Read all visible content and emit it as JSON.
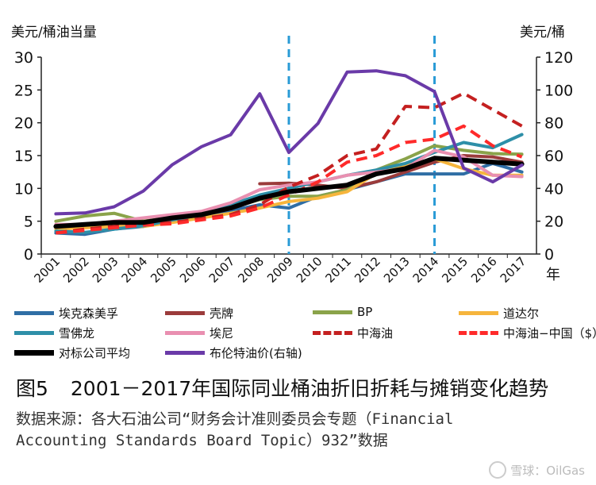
{
  "left_unit": "美元/桶油当量",
  "right_unit": "美元/桶",
  "x_unit": "年",
  "figure_label": "图5",
  "figure_title": "2001－2017年国际同业桶油折旧折耗与摊销变化趋势",
  "source_line1": "数据来源：各大石油公司“财务会计准则委员会专题（Financial",
  "source_line2": "Accounting Standards Board Topic）932”数据",
  "watermark": "雪球：OilGas",
  "chart_data": {
    "type": "line",
    "x": [
      "2001",
      "2002",
      "2003",
      "2004",
      "2005",
      "2006",
      "2007",
      "2008",
      "2009",
      "2010",
      "2011",
      "2012",
      "2013",
      "2014",
      "2015",
      "2016",
      "2017"
    ],
    "ylim": [
      0,
      30
    ],
    "y_ticks": [
      0,
      5,
      10,
      15,
      20,
      25,
      30
    ],
    "y2lim": [
      0,
      120
    ],
    "y2_ticks": [
      0,
      20,
      40,
      60,
      80,
      100,
      120
    ],
    "vlines": [
      "2009",
      "2014"
    ],
    "vline_color": "#2a9bd6",
    "series": [
      {
        "name": "埃克森美孚",
        "color": "#2f6ea5",
        "style": "solid",
        "axis": "left",
        "values": [
          3.2,
          3.0,
          3.8,
          4.2,
          5.0,
          5.8,
          6.6,
          7.5,
          7.0,
          8.8,
          9.8,
          11.0,
          12.2,
          12.2,
          12.2,
          13.8,
          12.5
        ]
      },
      {
        "name": "壳牌",
        "color": "#9b3b3b",
        "style": "solid",
        "axis": "left",
        "values": [
          null,
          null,
          null,
          null,
          null,
          null,
          null,
          10.7,
          10.8,
          10.5,
          10.0,
          11.0,
          12.5,
          14.0,
          15.0,
          14.8,
          14.0
        ]
      },
      {
        "name": "BP",
        "color": "#8aa34a",
        "style": "solid",
        "axis": "left",
        "values": [
          5.0,
          5.8,
          6.2,
          5.0,
          5.6,
          6.2,
          7.0,
          8.3,
          8.8,
          8.8,
          9.8,
          12.8,
          14.5,
          16.5,
          15.8,
          15.3,
          15.2
        ]
      },
      {
        "name": "道达尔",
        "color": "#f6b53c",
        "style": "solid",
        "axis": "left",
        "values": [
          3.8,
          4.0,
          4.2,
          4.2,
          4.8,
          5.5,
          6.2,
          7.0,
          8.0,
          8.5,
          9.5,
          12.3,
          13.5,
          14.5,
          13.0,
          12.0,
          12.0
        ]
      },
      {
        "name": "雪佛龙",
        "color": "#2e8fa8",
        "style": "solid",
        "axis": "left",
        "values": [
          3.5,
          3.3,
          3.8,
          4.3,
          5.2,
          6.0,
          7.5,
          9.0,
          10.0,
          11.0,
          12.0,
          12.8,
          13.8,
          15.5,
          17.0,
          16.2,
          18.2
        ]
      },
      {
        "name": "埃尼",
        "color": "#e98fb0",
        "style": "solid",
        "axis": "left",
        "values": [
          4.5,
          4.5,
          5.0,
          5.5,
          6.0,
          6.5,
          7.8,
          9.8,
          10.5,
          11.0,
          12.0,
          12.5,
          13.0,
          15.8,
          14.8,
          12.0,
          11.8
        ]
      },
      {
        "name": "中海油",
        "color": "#c42020",
        "style": "dash",
        "axis": "left",
        "values": [
          3.2,
          3.8,
          4.2,
          4.6,
          4.8,
          5.4,
          6.0,
          7.5,
          10.2,
          12.0,
          15.0,
          16.0,
          22.5,
          22.3,
          24.5,
          22.0,
          19.5
        ]
      },
      {
        "name": "中海油−中国（$）",
        "color": "#ff2a2a",
        "style": "dash",
        "axis": "left",
        "values": [
          3.2,
          3.6,
          4.0,
          4.4,
          4.6,
          5.2,
          5.8,
          7.0,
          9.0,
          11.0,
          14.0,
          15.0,
          17.0,
          17.5,
          19.5,
          16.5,
          14.8
        ]
      },
      {
        "name": "对标公司平均",
        "color": "#000000",
        "style": "solid",
        "axis": "left",
        "width": 6,
        "values": [
          4.2,
          4.5,
          4.8,
          4.8,
          5.5,
          6.0,
          7.0,
          8.5,
          9.5,
          10.0,
          10.5,
          12.2,
          13.0,
          14.6,
          14.3,
          14.0,
          13.7
        ]
      },
      {
        "name": "布伦特油价(右轴)",
        "color": "#6a3aa8",
        "style": "solid",
        "axis": "right",
        "values": [
          24.5,
          25.0,
          28.8,
          38.3,
          54.5,
          65.4,
          72.7,
          97.7,
          61.9,
          79.6,
          110.9,
          111.7,
          108.7,
          99.0,
          52.4,
          44.0,
          54.2
        ]
      }
    ]
  }
}
